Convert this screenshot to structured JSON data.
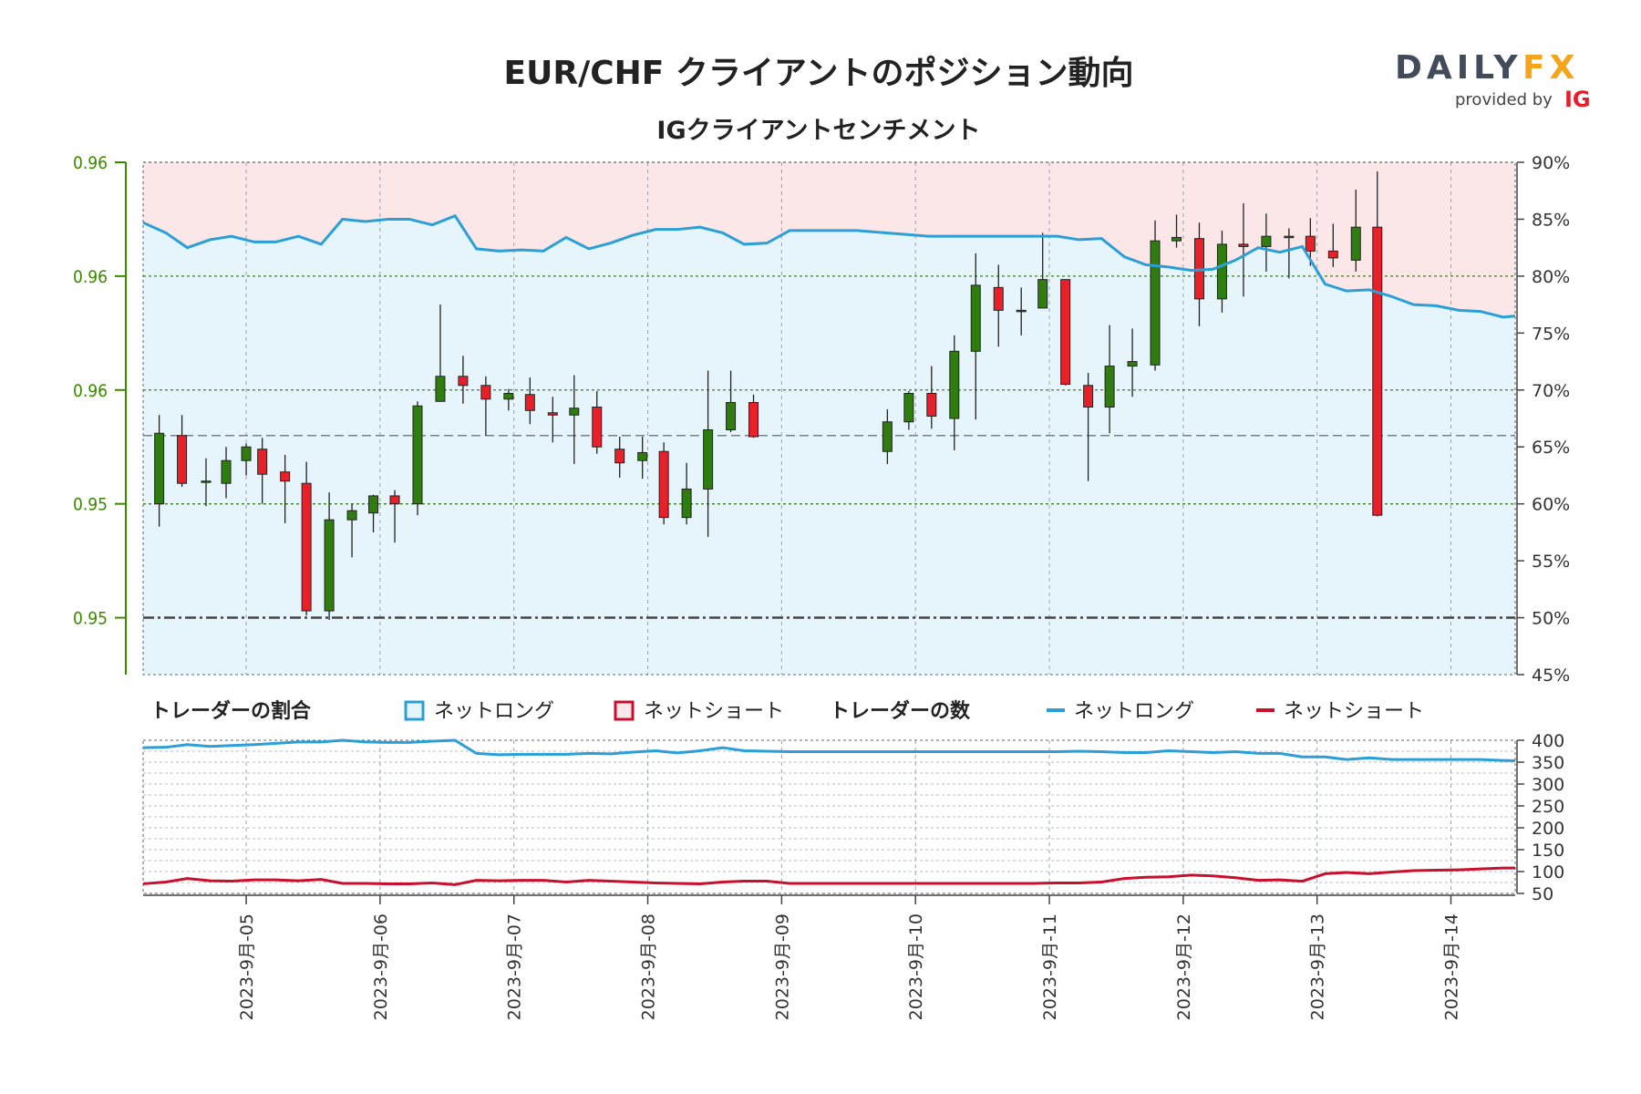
{
  "header": {
    "title": "EUR/CHF クライアントのポジション動向",
    "subtitle": "IGクライアントセンチメント"
  },
  "logo": {
    "part1": "DAILY",
    "part2": "FX",
    "provided_by": "provided by",
    "brand": "IG"
  },
  "legend": {
    "ratio_title": "トレーダーの割合",
    "ratio_long": "ネットロング",
    "ratio_short": "ネットショート",
    "count_title": "トレーダーの数",
    "count_long": "ネットロング",
    "count_short": "ネットショート"
  },
  "colors": {
    "long": "#2a9fd8",
    "short": "#c8102e",
    "bull": "#2e7d0e",
    "bear": "#e8202a",
    "long_area": "#e6f4fb",
    "short_area": "#fbe6e8",
    "axis_left": "#3a8a00"
  },
  "chart_data": [
    {
      "type": "candlestick",
      "left_axis_ticks": [
        "0.96",
        "0.96",
        "0.96",
        "0.95",
        "0.95"
      ],
      "right_axis_ticks": [
        "90%",
        "85%",
        "80%",
        "75%",
        "70%",
        "65%",
        "60%",
        "55%",
        "50%",
        "45%"
      ],
      "right_ylim": [
        45,
        90
      ],
      "x_tick_labels": [
        "2023-9月-05",
        "2023-9月-06",
        "2023-9月-07",
        "2023-9月-08",
        "2023-9月-09",
        "2023-9月-10",
        "2023-9月-11",
        "2023-9月-12",
        "2023-9月-13",
        "2023-9月-14"
      ],
      "x_range_days": [
        4.23,
        14.48
      ],
      "current_price_pct": 66,
      "candles": [
        {
          "t": 4.35,
          "o": 60.0,
          "c": 66.2,
          "h": 67.8,
          "l": 58.0
        },
        {
          "t": 4.52,
          "o": 66.0,
          "c": 61.8,
          "h": 67.8,
          "l": 61.5
        },
        {
          "t": 4.7,
          "o": 62.0,
          "c": 62.0,
          "h": 64.0,
          "l": 59.8
        },
        {
          "t": 4.85,
          "o": 61.8,
          "c": 63.8,
          "h": 65.0,
          "l": 60.5
        },
        {
          "t": 5.0,
          "o": 63.8,
          "c": 65.0,
          "h": 65.3,
          "l": 62.5
        },
        {
          "t": 5.12,
          "o": 64.8,
          "c": 62.6,
          "h": 65.8,
          "l": 60.0
        },
        {
          "t": 5.29,
          "o": 62.8,
          "c": 62.0,
          "h": 64.3,
          "l": 58.3
        },
        {
          "t": 5.45,
          "o": 61.8,
          "c": 50.6,
          "h": 63.7,
          "l": 50.2
        },
        {
          "t": 5.62,
          "o": 50.6,
          "c": 58.6,
          "h": 61.0,
          "l": 49.8
        },
        {
          "t": 5.79,
          "o": 58.6,
          "c": 59.4,
          "h": 60.0,
          "l": 55.3
        },
        {
          "t": 5.95,
          "o": 59.2,
          "c": 60.7,
          "h": 60.8,
          "l": 57.5
        },
        {
          "t": 6.11,
          "o": 60.7,
          "c": 60.0,
          "h": 61.2,
          "l": 56.6
        },
        {
          "t": 6.28,
          "o": 60.0,
          "c": 68.6,
          "h": 69.0,
          "l": 59.0
        },
        {
          "t": 6.45,
          "o": 69.0,
          "c": 71.2,
          "h": 77.5,
          "l": 69.0
        },
        {
          "t": 6.62,
          "o": 71.2,
          "c": 70.4,
          "h": 73.0,
          "l": 68.8
        },
        {
          "t": 6.79,
          "o": 70.4,
          "c": 69.2,
          "h": 71.2,
          "l": 66.0
        },
        {
          "t": 6.96,
          "o": 69.2,
          "c": 69.7,
          "h": 70.1,
          "l": 68.2
        },
        {
          "t": 7.12,
          "o": 69.6,
          "c": 68.2,
          "h": 71.1,
          "l": 67.0
        },
        {
          "t": 7.29,
          "o": 68.0,
          "c": 67.8,
          "h": 69.4,
          "l": 65.4
        },
        {
          "t": 7.45,
          "o": 67.8,
          "c": 68.4,
          "h": 71.3,
          "l": 63.5
        },
        {
          "t": 7.62,
          "o": 68.5,
          "c": 65.0,
          "h": 69.9,
          "l": 64.4
        },
        {
          "t": 7.79,
          "o": 64.8,
          "c": 63.6,
          "h": 65.9,
          "l": 62.3
        },
        {
          "t": 7.96,
          "o": 63.8,
          "c": 64.5,
          "h": 65.9,
          "l": 62.2
        },
        {
          "t": 8.12,
          "o": 64.6,
          "c": 58.8,
          "h": 65.4,
          "l": 58.2
        },
        {
          "t": 8.29,
          "o": 58.8,
          "c": 61.3,
          "h": 63.6,
          "l": 58.2
        },
        {
          "t": 8.45,
          "o": 61.3,
          "c": 66.5,
          "h": 71.7,
          "l": 57.1
        },
        {
          "t": 8.62,
          "o": 66.5,
          "c": 68.9,
          "h": 71.7,
          "l": 66.3
        },
        {
          "t": 8.79,
          "o": 68.9,
          "c": 65.9,
          "h": 69.6,
          "l": 65.8
        },
        {
          "t": 9.79,
          "o": 64.6,
          "c": 67.2,
          "h": 68.3,
          "l": 63.5
        },
        {
          "t": 9.95,
          "o": 67.2,
          "c": 69.7,
          "h": 69.9,
          "l": 66.5
        },
        {
          "t": 10.12,
          "o": 69.7,
          "c": 67.7,
          "h": 72.1,
          "l": 66.6
        },
        {
          "t": 10.29,
          "o": 67.5,
          "c": 73.4,
          "h": 74.8,
          "l": 64.7
        },
        {
          "t": 10.45,
          "o": 73.4,
          "c": 79.2,
          "h": 82.0,
          "l": 67.4
        },
        {
          "t": 10.62,
          "o": 79.0,
          "c": 77.0,
          "h": 81.0,
          "l": 73.8
        },
        {
          "t": 10.79,
          "o": 77.0,
          "c": 77.0,
          "h": 79.0,
          "l": 74.8
        },
        {
          "t": 10.95,
          "o": 77.2,
          "c": 79.7,
          "h": 83.8,
          "l": 77.2
        },
        {
          "t": 11.12,
          "o": 79.7,
          "c": 70.5,
          "h": 79.7,
          "l": 70.4
        },
        {
          "t": 11.29,
          "o": 70.4,
          "c": 68.5,
          "h": 71.5,
          "l": 62.0
        },
        {
          "t": 11.45,
          "o": 68.5,
          "c": 72.1,
          "h": 75.7,
          "l": 66.2
        },
        {
          "t": 11.62,
          "o": 72.1,
          "c": 72.5,
          "h": 75.4,
          "l": 69.4
        },
        {
          "t": 11.79,
          "o": 72.2,
          "c": 83.1,
          "h": 84.9,
          "l": 71.7
        },
        {
          "t": 11.95,
          "o": 83.1,
          "c": 83.4,
          "h": 85.4,
          "l": 82.5
        },
        {
          "t": 12.12,
          "o": 83.3,
          "c": 78.0,
          "h": 84.7,
          "l": 75.6
        },
        {
          "t": 12.29,
          "o": 78.0,
          "c": 82.8,
          "h": 84.0,
          "l": 76.8
        },
        {
          "t": 12.45,
          "o": 82.8,
          "c": 82.6,
          "h": 86.4,
          "l": 78.2
        },
        {
          "t": 12.62,
          "o": 82.6,
          "c": 83.5,
          "h": 85.5,
          "l": 80.4
        },
        {
          "t": 12.79,
          "o": 83.5,
          "c": 83.5,
          "h": 84.2,
          "l": 79.8
        },
        {
          "t": 12.95,
          "o": 83.5,
          "c": 82.2,
          "h": 85.1,
          "l": 80.9
        },
        {
          "t": 13.12,
          "o": 82.2,
          "c": 81.6,
          "h": 84.6,
          "l": 80.8
        },
        {
          "t": 13.29,
          "o": 81.4,
          "c": 84.3,
          "h": 87.6,
          "l": 80.4
        },
        {
          "t": 13.45,
          "o": 84.3,
          "c": 59.0,
          "h": 89.2,
          "l": 58.9
        }
      ],
      "long_pct_line": [
        [
          4.23,
          84.7
        ],
        [
          4.4,
          83.8
        ],
        [
          4.56,
          82.5
        ],
        [
          4.73,
          83.2
        ],
        [
          4.89,
          83.5
        ],
        [
          5.06,
          83.0
        ],
        [
          5.22,
          83.0
        ],
        [
          5.39,
          83.5
        ],
        [
          5.56,
          82.8
        ],
        [
          5.72,
          85.0
        ],
        [
          5.89,
          84.8
        ],
        [
          6.06,
          85.0
        ],
        [
          6.22,
          85.0
        ],
        [
          6.39,
          84.5
        ],
        [
          6.56,
          85.3
        ],
        [
          6.72,
          82.4
        ],
        [
          6.89,
          82.2
        ],
        [
          7.06,
          82.3
        ],
        [
          7.22,
          82.2
        ],
        [
          7.39,
          83.4
        ],
        [
          7.56,
          82.4
        ],
        [
          7.72,
          82.9
        ],
        [
          7.89,
          83.6
        ],
        [
          8.06,
          84.1
        ],
        [
          8.22,
          84.1
        ],
        [
          8.39,
          84.3
        ],
        [
          8.56,
          83.8
        ],
        [
          8.72,
          82.8
        ],
        [
          8.89,
          82.9
        ],
        [
          9.06,
          84.0
        ],
        [
          9.22,
          84.0
        ],
        [
          9.39,
          84.0
        ],
        [
          9.56,
          84.0
        ],
        [
          10.1,
          83.5
        ],
        [
          10.26,
          83.5
        ],
        [
          10.89,
          83.5
        ],
        [
          11.06,
          83.5
        ],
        [
          11.22,
          83.2
        ],
        [
          11.39,
          83.3
        ],
        [
          11.56,
          81.7
        ],
        [
          11.72,
          81.0
        ],
        [
          11.89,
          80.8
        ],
        [
          12.06,
          80.5
        ],
        [
          12.22,
          80.6
        ],
        [
          12.39,
          81.4
        ],
        [
          12.56,
          82.5
        ],
        [
          12.72,
          82.1
        ],
        [
          12.89,
          82.6
        ],
        [
          13.06,
          79.3
        ],
        [
          13.22,
          78.7
        ],
        [
          13.39,
          78.8
        ],
        [
          13.56,
          78.2
        ],
        [
          13.72,
          77.5
        ],
        [
          13.89,
          77.4
        ],
        [
          14.06,
          77.0
        ],
        [
          14.22,
          76.9
        ],
        [
          14.39,
          76.4
        ],
        [
          14.48,
          76.5
        ]
      ]
    },
    {
      "type": "line",
      "right_axis_ticks": [
        "400",
        "350",
        "300",
        "250",
        "200",
        "150",
        "100",
        "50"
      ],
      "ylim": [
        50,
        400
      ],
      "series": [
        {
          "name": "ネットロング",
          "color": "#2a9fd8",
          "points": [
            [
              4.23,
              383
            ],
            [
              4.4,
              384
            ],
            [
              4.56,
              390
            ],
            [
              4.73,
              386
            ],
            [
              4.89,
              388
            ],
            [
              5.06,
              390
            ],
            [
              5.22,
              393
            ],
            [
              5.39,
              396
            ],
            [
              5.56,
              396
            ],
            [
              5.72,
              400
            ],
            [
              5.89,
              396
            ],
            [
              6.06,
              395
            ],
            [
              6.22,
              395
            ],
            [
              6.39,
              398
            ],
            [
              6.56,
              400
            ],
            [
              6.72,
              370
            ],
            [
              6.89,
              367
            ],
            [
              7.06,
              368
            ],
            [
              7.22,
              368
            ],
            [
              7.39,
              368
            ],
            [
              7.56,
              370
            ],
            [
              7.72,
              369
            ],
            [
              7.89,
              373
            ],
            [
              8.06,
              376
            ],
            [
              8.22,
              371
            ],
            [
              8.39,
              376
            ],
            [
              8.56,
              383
            ],
            [
              8.72,
              376
            ],
            [
              8.89,
              375
            ],
            [
              9.06,
              374
            ],
            [
              9.89,
              374
            ],
            [
              10.89,
              374
            ],
            [
              11.06,
              374
            ],
            [
              11.22,
              375
            ],
            [
              11.39,
              374
            ],
            [
              11.56,
              372
            ],
            [
              11.72,
              372
            ],
            [
              11.89,
              376
            ],
            [
              12.06,
              374
            ],
            [
              12.22,
              372
            ],
            [
              12.39,
              374
            ],
            [
              12.56,
              370
            ],
            [
              12.72,
              370
            ],
            [
              12.89,
              362
            ],
            [
              13.06,
              362
            ],
            [
              13.22,
              356
            ],
            [
              13.39,
              360
            ],
            [
              13.56,
              356
            ],
            [
              13.72,
              356
            ],
            [
              13.89,
              356
            ],
            [
              14.06,
              356
            ],
            [
              14.22,
              356
            ],
            [
              14.39,
              354
            ],
            [
              14.48,
              353
            ]
          ]
        },
        {
          "name": "ネットショート",
          "color": "#c8102e",
          "points": [
            [
              4.23,
              72
            ],
            [
              4.4,
              76
            ],
            [
              4.56,
              84
            ],
            [
              4.73,
              79
            ],
            [
              4.89,
              78
            ],
            [
              5.06,
              81
            ],
            [
              5.22,
              81
            ],
            [
              5.39,
              79
            ],
            [
              5.56,
              82
            ],
            [
              5.72,
              73
            ],
            [
              5.89,
              73
            ],
            [
              6.06,
              72
            ],
            [
              6.22,
              72
            ],
            [
              6.39,
              74
            ],
            [
              6.56,
              70
            ],
            [
              6.72,
              80
            ],
            [
              6.89,
              79
            ],
            [
              7.06,
              80
            ],
            [
              7.22,
              80
            ],
            [
              7.39,
              76
            ],
            [
              7.56,
              80
            ],
            [
              7.72,
              78
            ],
            [
              7.89,
              76
            ],
            [
              8.06,
              74
            ],
            [
              8.22,
              73
            ],
            [
              8.39,
              72
            ],
            [
              8.56,
              76
            ],
            [
              8.72,
              78
            ],
            [
              8.89,
              78
            ],
            [
              9.06,
              73
            ],
            [
              9.89,
              73
            ],
            [
              10.89,
              73
            ],
            [
              11.06,
              74
            ],
            [
              11.22,
              74
            ],
            [
              11.39,
              76
            ],
            [
              11.56,
              84
            ],
            [
              11.72,
              87
            ],
            [
              11.89,
              88
            ],
            [
              12.06,
              92
            ],
            [
              12.22,
              90
            ],
            [
              12.39,
              86
            ],
            [
              12.56,
              80
            ],
            [
              12.72,
              81
            ],
            [
              12.89,
              78
            ],
            [
              13.06,
              95
            ],
            [
              13.22,
              98
            ],
            [
              13.39,
              95
            ],
            [
              13.56,
              99
            ],
            [
              13.72,
              102
            ],
            [
              13.89,
              103
            ],
            [
              14.06,
              104
            ],
            [
              14.22,
              106
            ],
            [
              14.39,
              108
            ],
            [
              14.48,
              108
            ]
          ]
        }
      ]
    }
  ]
}
